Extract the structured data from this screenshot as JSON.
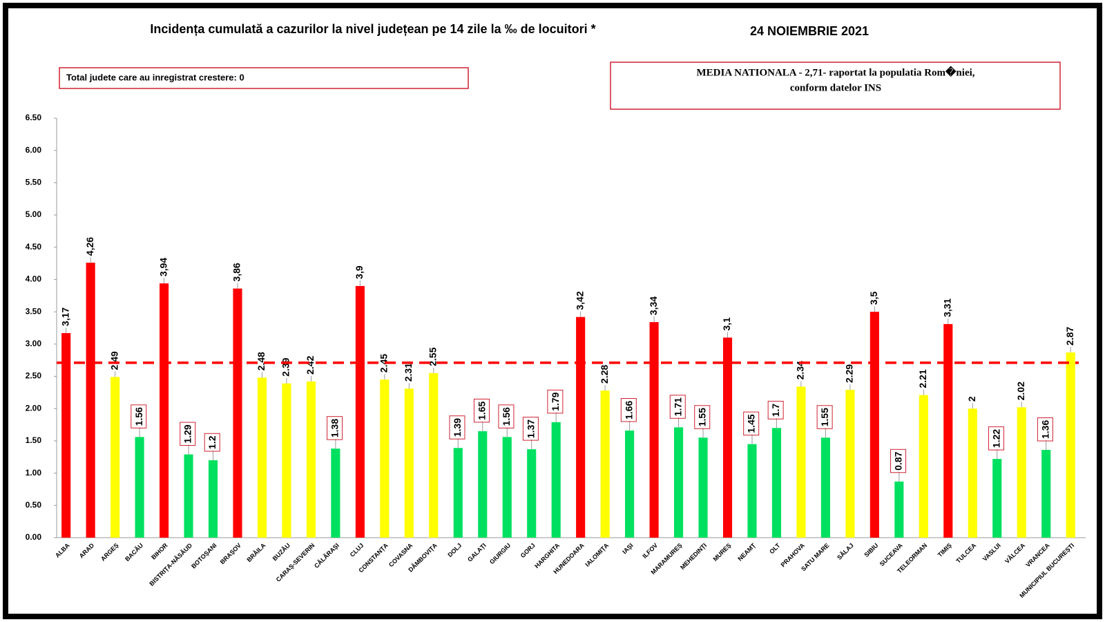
{
  "chart_data": {
    "type": "bar",
    "title": "Incidența cumulată a cazurilor la nivel județean pe 14 zile la ‰ de locuitori *",
    "subtitle": "24 NOIEMBRIE 2021",
    "annotations": [
      "Total judete care au inregistrat crestere: 0",
      "MEDIA NATIONALA - 2,71-  raportat la populatia Rom�niei,",
      "conform datelor INS"
    ],
    "categories": [
      "ALBA",
      "ARAD",
      "ARGEȘ",
      "BACĂU",
      "BIHOR",
      "BISTRIȚA-NĂSĂUD",
      "BOTOȘANI",
      "BRAȘOV",
      "BRĂILA",
      "BUZĂU",
      "CARAȘ-SEVERIN",
      "CĂLĂRAȘI",
      "CLUJ",
      "CONSTANȚA",
      "COVASNA",
      "DÂMBOVIȚA",
      "DOLJ",
      "GALAȚI",
      "GIURGIU",
      "GORJ",
      "HARGHITA",
      "HUNEDOARA",
      "IALOMIȚA",
      "IAȘI",
      "ILFOV",
      "MARAMUREȘ",
      "MEHEDINȚI",
      "MUREȘ",
      "NEAMȚ",
      "OLT",
      "PRAHOVA",
      "SATU MARE",
      "SĂLAJ",
      "SIBIU",
      "SUCEAVA",
      "TELEORMAN",
      "TIMIȘ",
      "TULCEA",
      "VASLUI",
      "VÂLCEA",
      "VRANCEA",
      "MUNICIPIUL BUCUREȘTI"
    ],
    "values": [
      3.17,
      4.26,
      2.49,
      1.56,
      3.94,
      1.29,
      1.2,
      3.86,
      2.48,
      2.39,
      2.42,
      1.38,
      3.9,
      2.45,
      2.31,
      2.55,
      1.39,
      1.65,
      1.56,
      1.37,
      1.79,
      3.42,
      2.28,
      1.66,
      3.34,
      1.71,
      1.55,
      3.1,
      1.45,
      1.7,
      2.34,
      1.55,
      2.29,
      3.5,
      0.87,
      2.21,
      3.31,
      2,
      1.22,
      2.02,
      1.36,
      2.87
    ],
    "value_labels": [
      "3,17",
      "4,26",
      "2.49",
      "1.56",
      "3,94",
      "1.29",
      "1.2",
      "3,86",
      "2.48",
      "2.39",
      "2.42",
      "1.38",
      "3,9",
      "2.45",
      "2.31",
      "2.55",
      "1.39",
      "1.65",
      "1.56",
      "1.37",
      "1.79",
      "3,42",
      "2.28",
      "1.66",
      "3,34",
      "1.71",
      "1.55",
      "3,1",
      "1.45",
      "1.7",
      "2.34",
      "1.55",
      "2.29",
      "3,5",
      "0.87",
      "2.21",
      "3,31",
      "2",
      "1.22",
      "2.02",
      "1.36",
      "2.87"
    ],
    "colors": [
      "#ff0000",
      "#ff0000",
      "#ffff00",
      "#00e060",
      "#ff0000",
      "#00e060",
      "#00e060",
      "#ff0000",
      "#ffff00",
      "#ffff00",
      "#ffff00",
      "#00e060",
      "#ff0000",
      "#ffff00",
      "#ffff00",
      "#ffff00",
      "#00e060",
      "#00e060",
      "#00e060",
      "#00e060",
      "#00e060",
      "#ff0000",
      "#ffff00",
      "#00e060",
      "#ff0000",
      "#00e060",
      "#00e060",
      "#ff0000",
      "#00e060",
      "#00e060",
      "#ffff00",
      "#00e060",
      "#ffff00",
      "#ff0000",
      "#00e060",
      "#ffff00",
      "#ff0000",
      "#ffff00",
      "#00e060",
      "#ffff00",
      "#00e060",
      "#ffff00"
    ],
    "reference_line": {
      "value": 2.71,
      "color": "#ff0000"
    },
    "ylim": [
      0,
      6.5
    ],
    "yticks": [
      {
        "value": 0,
        "label": "0.00"
      },
      {
        "value": 0.5,
        "label": "0.50"
      },
      {
        "value": 1,
        "label": "1.00"
      },
      {
        "value": 1.5,
        "label": "1.50"
      },
      {
        "value": 2,
        "label": "2.00"
      },
      {
        "value": 2.5,
        "label": "2.50"
      },
      {
        "value": 3,
        "label": "3.00"
      },
      {
        "value": 3.5,
        "label": "3.50"
      },
      {
        "value": 4,
        "label": "4.00"
      },
      {
        "value": 4.5,
        "label": "4.50"
      },
      {
        "value": 5,
        "label": "5.00"
      },
      {
        "value": 5.5,
        "label": "5.50"
      },
      {
        "value": 6,
        "label": "6.00"
      },
      {
        "value": 6.5,
        "label": "6.50"
      }
    ]
  }
}
